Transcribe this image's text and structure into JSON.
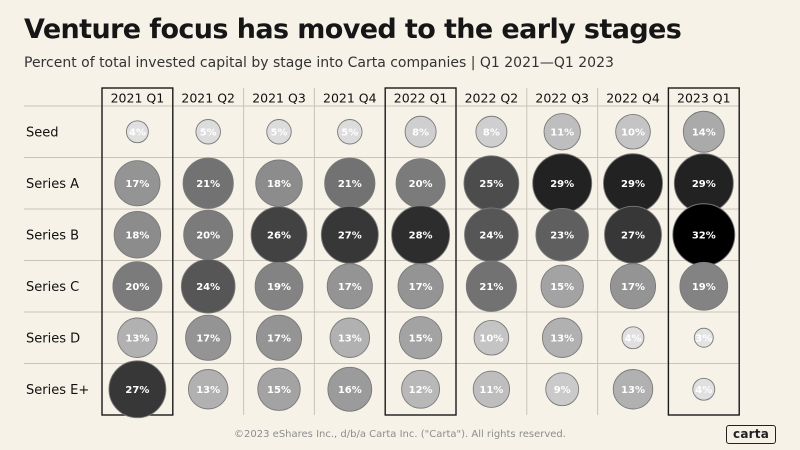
{
  "header": {
    "title": "Venture focus has moved to the early stages",
    "subtitle": "Percent of total invested capital by stage into Carta companies  |  Q1 2021—Q1 2023"
  },
  "footer": {
    "copyright": "©2023 eShares Inc., d/b/a Carta Inc. (\"Carta\"). All rights reserved.",
    "logo": "carta"
  },
  "chart_data": {
    "type": "bubble-matrix",
    "title": "Venture focus has moved to the early stages",
    "subtitle": "Percent of total invested capital by stage into Carta companies  |  Q1 2021—Q1 2023",
    "columns": [
      "2021 Q1",
      "2021 Q2",
      "2021 Q3",
      "2021 Q4",
      "2022 Q1",
      "2022 Q2",
      "2022 Q3",
      "2022 Q4",
      "2023 Q1"
    ],
    "rows": [
      "Seed",
      "Series A",
      "Series B",
      "Series C",
      "Series D",
      "Series E+"
    ],
    "values": [
      [
        4,
        5,
        5,
        5,
        8,
        8,
        11,
        10,
        14
      ],
      [
        17,
        21,
        18,
        21,
        20,
        25,
        29,
        29,
        29
      ],
      [
        18,
        20,
        26,
        27,
        28,
        24,
        23,
        27,
        32
      ],
      [
        20,
        24,
        19,
        17,
        17,
        21,
        15,
        17,
        19
      ],
      [
        13,
        17,
        17,
        13,
        15,
        10,
        13,
        4,
        3
      ],
      [
        27,
        13,
        15,
        16,
        12,
        11,
        9,
        13,
        4
      ]
    ],
    "unit": "%",
    "highlighted_columns": [
      "2021 Q1",
      "2022 Q1",
      "2023 Q1"
    ],
    "colors": {
      "background": "#f6f2e8",
      "low": "#e8e8e8",
      "high": "#000000",
      "text_light": "#ffffff",
      "text_dark": "#ffffff",
      "grid": "#c9c4b8",
      "frame": "#1a1a1a"
    }
  }
}
